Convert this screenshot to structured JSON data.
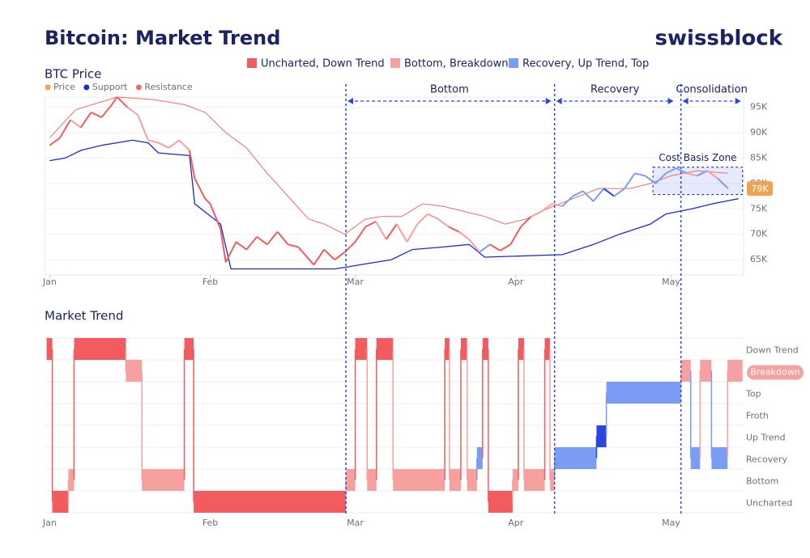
{
  "title": "Bitcoin: Market Trend",
  "brand": "swissblock",
  "legend": [
    {
      "label": "Uncharted, Down Trend",
      "color": "#f25c5e"
    },
    {
      "label": "Bottom, Breakdown",
      "color": "#f7a0a0"
    },
    {
      "label": "Recovery, Up Trend, Top",
      "color": "#7b9cf4"
    }
  ],
  "chart_data": [
    {
      "type": "line",
      "title": "BTC Price",
      "xlim": [
        -1,
        134
      ],
      "xticks": [
        {
          "value": 0,
          "label": "Jan"
        },
        {
          "value": 31,
          "label": "Feb"
        },
        {
          "value": 59,
          "label": "Mar"
        },
        {
          "value": 90,
          "label": "Apr"
        },
        {
          "value": 120,
          "label": "May"
        }
      ],
      "ylim": [
        62000,
        97000
      ],
      "yticks": [
        {
          "value": 65000,
          "label": "65K"
        },
        {
          "value": 70000,
          "label": "70K"
        },
        {
          "value": 75000,
          "label": "75K"
        },
        {
          "value": 80000,
          "label": "80K"
        },
        {
          "value": 85000,
          "label": "85K"
        },
        {
          "value": 90000,
          "label": "90K"
        },
        {
          "value": 95000,
          "label": "95K"
        }
      ],
      "grid": true,
      "series": [
        {
          "name": "Price",
          "color": "#f0a350",
          "x": [
            0,
            2,
            4,
            6,
            8,
            10,
            12,
            13,
            15,
            17,
            19,
            21,
            23,
            25,
            27,
            28,
            30,
            31,
            33,
            34,
            36,
            38,
            40,
            42,
            44,
            46,
            48,
            51,
            53,
            55,
            57,
            59,
            61,
            63,
            65,
            67,
            69,
            71,
            73,
            75,
            77,
            79,
            81,
            83,
            85,
            87,
            89,
            91,
            93,
            95,
            97,
            99,
            101,
            103,
            105,
            107,
            109,
            111,
            113,
            115,
            117,
            119,
            121,
            123,
            125,
            127,
            129,
            131
          ],
          "values": [
            87500,
            89000,
            92500,
            91000,
            94000,
            93000,
            95500,
            97000,
            95000,
            93500,
            88500,
            88000,
            87000,
            88500,
            86500,
            81000,
            77000,
            76000,
            71000,
            64500,
            68500,
            67000,
            69500,
            68000,
            70500,
            68000,
            67500,
            64000,
            67000,
            65000,
            66500,
            68500,
            71500,
            72500,
            69000,
            72000,
            68500,
            72000,
            74000,
            73000,
            71500,
            70500,
            69000,
            66500,
            68000,
            66800,
            68000,
            71500,
            73500,
            74500,
            76000,
            75500,
            77500,
            78500,
            76500,
            79000,
            77500,
            79000,
            82000,
            81500,
            80000,
            82000,
            83000,
            82000,
            81500,
            82500,
            81000,
            79000
          ]
        },
        {
          "name": "Support",
          "color": "#1a2bd6",
          "x": [
            0,
            3,
            6,
            10,
            16,
            19,
            21,
            27,
            28,
            33,
            35,
            55,
            57,
            60,
            66,
            70,
            76,
            81,
            84,
            99,
            105,
            110,
            116,
            119,
            124,
            128,
            133
          ],
          "values": [
            84500,
            85000,
            86500,
            87500,
            88500,
            88000,
            86000,
            85500,
            76000,
            72000,
            63200,
            63200,
            63500,
            64000,
            65000,
            67000,
            67500,
            68000,
            65500,
            66000,
            68000,
            70000,
            72000,
            74000,
            75000,
            76000,
            77000
          ]
        },
        {
          "name": "Resistance",
          "color": "#f06a6a",
          "x": [
            0,
            5,
            13,
            20,
            26,
            30,
            34,
            38,
            42,
            46,
            50,
            53,
            57,
            61,
            64,
            68,
            72,
            76,
            80,
            84,
            88,
            92,
            96,
            101,
            106,
            112,
            116,
            120,
            125,
            131
          ],
          "values": [
            89000,
            94500,
            97000,
            96500,
            95500,
            94000,
            90000,
            87000,
            82000,
            77500,
            73000,
            72000,
            70000,
            73000,
            73500,
            73500,
            76000,
            75500,
            74500,
            73500,
            72000,
            73000,
            75000,
            77000,
            79000,
            79000,
            80000,
            81500,
            82500,
            82000
          ]
        }
      ],
      "periods": [
        {
          "label": "Bottom",
          "start": 57.2,
          "end": 97.2
        },
        {
          "label": "Recovery",
          "start": 97.5,
          "end": 120.8
        },
        {
          "label": "Consolidation",
          "start": 121.9,
          "end": 133.8
        }
      ],
      "cost_basis": {
        "label": "Cost Basis Zone",
        "x": [
          116.5,
          133.8
        ],
        "y": [
          77800,
          83200
        ]
      },
      "last_price": {
        "label": "79K",
        "value": 79000
      }
    },
    {
      "type": "step",
      "title": "Market Trend",
      "categories": [
        "Uncharted",
        "Bottom",
        "Recovery",
        "Up Trend",
        "Froth",
        "Top",
        "Breakdown",
        "Down Trend"
      ],
      "colors": [
        "#f25c5e",
        "#f7a0a0",
        "#7b9cf4",
        "#2a45e0",
        "#7b9cf4",
        "#7b9cf4",
        "#f7a0a0",
        "#f25c5e"
      ],
      "edges": [
        -0.6,
        0.5,
        3.6,
        4.7,
        14.7,
        17.8,
        26,
        27.8,
        57.2,
        59,
        61.3,
        63.1,
        66.3,
        76.3,
        77.2,
        79.4,
        80.6,
        82.5,
        83.6,
        84.7,
        89.4,
        90.5,
        91.6,
        95.6,
        96.6,
        97.5,
        105.6,
        107.5,
        121.9,
        123.8,
        125.6,
        127.8,
        130.9,
        133.8
      ],
      "states": [
        "Down Trend",
        "Uncharted",
        "Bottom",
        "Down Trend",
        "Breakdown",
        "Bottom",
        "Down Trend",
        "Uncharted",
        "Bottom",
        "Down Trend",
        "Bottom",
        "Down Trend",
        "Bottom",
        "Down Trend",
        "Bottom",
        "Down Trend",
        "Bottom",
        "Recovery",
        "Down Trend",
        "Uncharted",
        "Bottom",
        "Down Trend",
        "Bottom",
        "Down Trend",
        "Bottom",
        "Recovery",
        "Up Trend",
        "Top",
        "Breakdown",
        "Recovery",
        "Breakdown",
        "Recovery",
        "Breakdown"
      ]
    }
  ]
}
